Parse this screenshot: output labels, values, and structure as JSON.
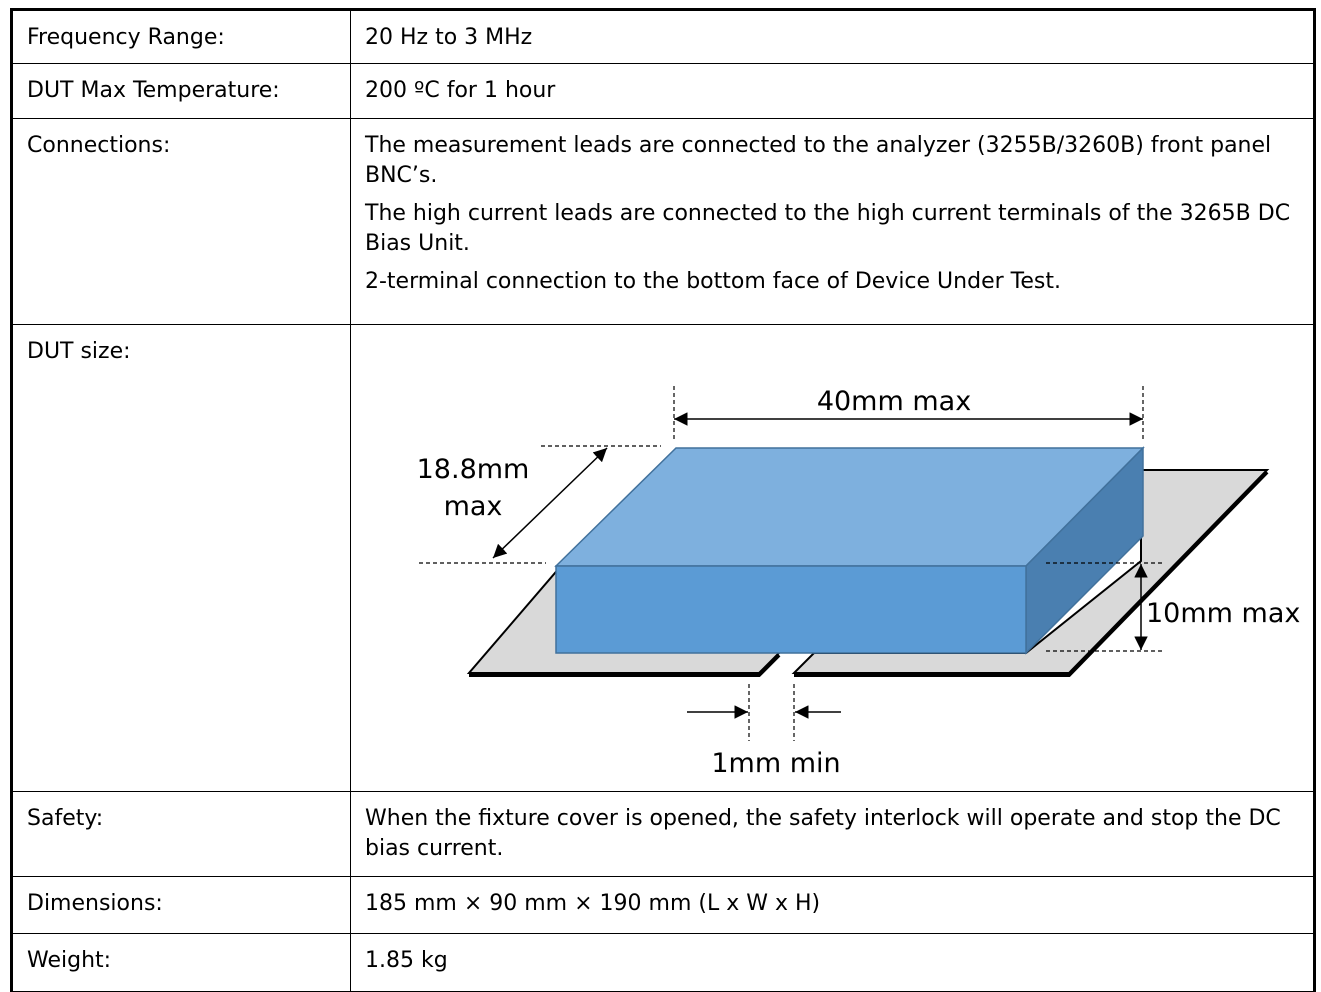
{
  "table": {
    "rows": [
      {
        "label": "Frequency Range:",
        "value": "20 Hz to 3 MHz"
      },
      {
        "label": "DUT Max Temperature:",
        "value": "200 ºC for 1 hour"
      },
      {
        "label": "Connections:",
        "paragraphs": [
          "The measurement leads are connected to the analyzer (3255B/3260B) front panel BNC’s.",
          "The high current leads are connected to the high current terminals of the 3265B DC Bias Unit.",
          "2-terminal connection to the bottom face of Device Under Test."
        ]
      },
      {
        "label": "DUT size:",
        "diagram": {
          "width": "40mm max",
          "depth_line1": "18.8mm",
          "depth_line2": "max",
          "height": "10mm max",
          "gap": "1mm min"
        }
      },
      {
        "label": "Safety:",
        "value": "When the fixture cover is opened, the safety interlock will operate and stop the DC bias current."
      },
      {
        "label": "Dimensions:",
        "value": "185 mm × 90 mm × 190 mm (L x W x H)"
      },
      {
        "label": "Weight:",
        "value": "1.85 kg"
      }
    ]
  }
}
